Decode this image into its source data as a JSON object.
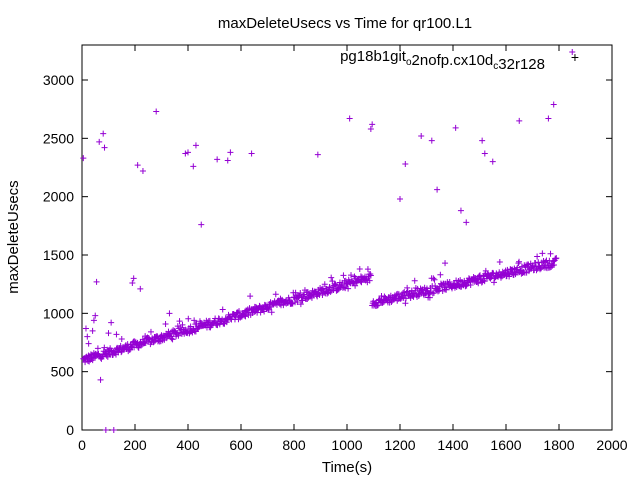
{
  "chart_data": {
    "type": "scatter",
    "title": "maxDeleteUsecs vs Time for qr100.L1",
    "xlabel": "Time(s)",
    "ylabel": "maxDeleteUsecs",
    "xlim": [
      0,
      2000
    ],
    "ylim": [
      0,
      3300
    ],
    "xticks": [
      0,
      200,
      400,
      600,
      800,
      1000,
      1200,
      1400,
      1600,
      1800,
      2000
    ],
    "yticks": [
      0,
      500,
      1000,
      1500,
      2000,
      2500,
      3000
    ],
    "grid": false,
    "legend_position": "top-right",
    "marker": "plus",
    "series": [
      {
        "name": "pg18b1git_o2nofp.cx10d_c32r128",
        "name_parts": [
          {
            "text": "pg18b1git",
            "sub": false
          },
          {
            "text": "o",
            "sub": true
          },
          {
            "text": "2nofp.cx10d",
            "sub": false
          },
          {
            "text": "c",
            "sub": true
          },
          {
            "text": "32r128",
            "sub": false
          }
        ],
        "color": "#9400d3",
        "trend_segments": [
          {
            "x_start": 5,
            "x_end": 1090,
            "y_start": 600,
            "y_end": 1310
          },
          {
            "x_start": 1095,
            "x_end": 1790,
            "y_start": 1090,
            "y_end": 1440
          }
        ],
        "outliers": [
          [
            5,
            2330
          ],
          [
            15,
            870
          ],
          [
            20,
            800
          ],
          [
            25,
            740
          ],
          [
            40,
            850
          ],
          [
            45,
            940
          ],
          [
            50,
            980
          ],
          [
            55,
            1270
          ],
          [
            60,
            700
          ],
          [
            65,
            2470
          ],
          [
            70,
            430
          ],
          [
            80,
            2540
          ],
          [
            85,
            2420
          ],
          [
            90,
            0
          ],
          [
            100,
            830
          ],
          [
            110,
            920
          ],
          [
            120,
            0
          ],
          [
            130,
            820
          ],
          [
            150,
            780
          ],
          [
            190,
            1260
          ],
          [
            195,
            1300
          ],
          [
            210,
            2270
          ],
          [
            220,
            1210
          ],
          [
            230,
            2220
          ],
          [
            280,
            2730
          ],
          [
            330,
            1000
          ],
          [
            390,
            2370
          ],
          [
            400,
            2380
          ],
          [
            420,
            2260
          ],
          [
            430,
            2440
          ],
          [
            450,
            1760
          ],
          [
            510,
            2320
          ],
          [
            550,
            2310
          ],
          [
            560,
            2380
          ],
          [
            640,
            2370
          ],
          [
            890,
            2360
          ],
          [
            1010,
            2670
          ],
          [
            1090,
            2580
          ],
          [
            1095,
            2620
          ],
          [
            1200,
            1980
          ],
          [
            1220,
            2280
          ],
          [
            1280,
            2520
          ],
          [
            1320,
            2480
          ],
          [
            1340,
            2060
          ],
          [
            1370,
            1430
          ],
          [
            1410,
            2590
          ],
          [
            1430,
            1880
          ],
          [
            1450,
            1780
          ],
          [
            1510,
            2480
          ],
          [
            1520,
            2370
          ],
          [
            1550,
            2300
          ],
          [
            1650,
            2650
          ],
          [
            1760,
            2670
          ],
          [
            1780,
            2790
          ],
          [
            1850,
            3240
          ]
        ]
      }
    ]
  }
}
